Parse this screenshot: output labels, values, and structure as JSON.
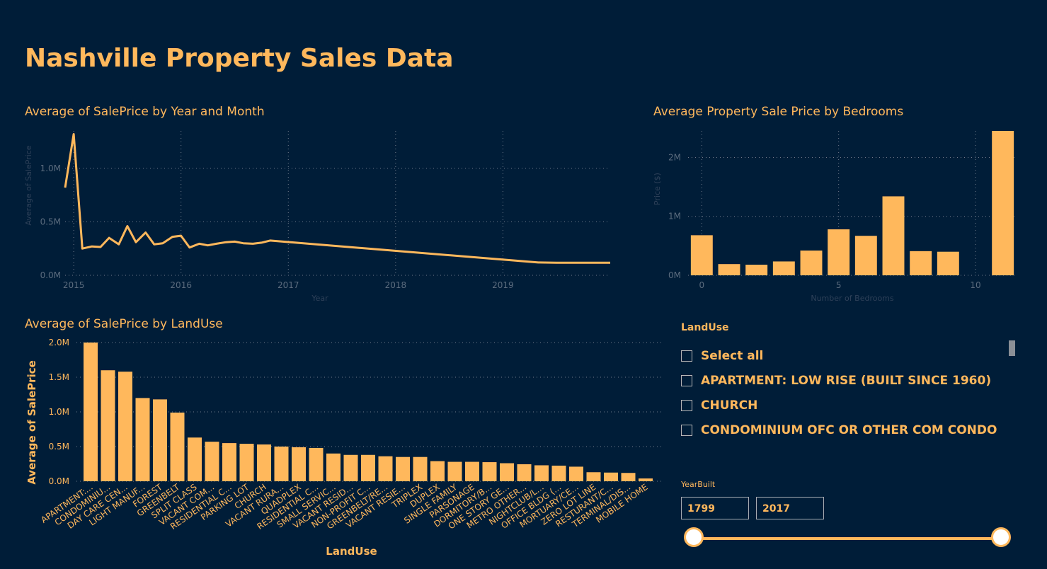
{
  "page": {
    "title": "Nashville Property Sales Data"
  },
  "charts": {
    "line": {
      "title": "Average of SalePrice by Year and Month"
    },
    "bedrooms": {
      "title": "Average Property Sale Price by Bedrooms"
    },
    "landuse": {
      "title": "Average of SalePrice by LandUse"
    }
  },
  "chart_data": [
    {
      "type": "line",
      "title": "Average of SalePrice by Year and Month",
      "xlabel": "Year",
      "ylabel": "Average of SalePrice",
      "xlim": [
        2014.92,
        2020.0
      ],
      "ylim": [
        0,
        1350000
      ],
      "x_ticks": [
        "2015",
        "2016",
        "2017",
        "2018",
        "2019"
      ],
      "y_ticks": [
        "0.0M",
        "0.5M",
        "1.0M"
      ],
      "color": "#FFB85C",
      "points": [
        [
          2014.92,
          820000
        ],
        [
          2015.0,
          1320000
        ],
        [
          2015.08,
          250000
        ],
        [
          2015.17,
          270000
        ],
        [
          2015.25,
          265000
        ],
        [
          2015.33,
          350000
        ],
        [
          2015.42,
          290000
        ],
        [
          2015.5,
          460000
        ],
        [
          2015.58,
          310000
        ],
        [
          2015.67,
          400000
        ],
        [
          2015.75,
          290000
        ],
        [
          2015.83,
          300000
        ],
        [
          2015.92,
          360000
        ],
        [
          2016.0,
          370000
        ],
        [
          2016.08,
          260000
        ],
        [
          2016.17,
          295000
        ],
        [
          2016.25,
          280000
        ],
        [
          2016.33,
          295000
        ],
        [
          2016.42,
          310000
        ],
        [
          2016.5,
          315000
        ],
        [
          2016.58,
          300000
        ],
        [
          2016.67,
          295000
        ],
        [
          2016.75,
          305000
        ],
        [
          2016.83,
          325000
        ],
        [
          2019.33,
          120000
        ],
        [
          2019.5,
          118000
        ],
        [
          2020.0,
          118000
        ]
      ]
    },
    {
      "type": "bar",
      "title": "Average Property Sale Price by Bedrooms",
      "xlabel": "Number of Bedrooms",
      "ylabel": "Price ($)",
      "xlim": [
        -0.5,
        11.5
      ],
      "ylim": [
        0,
        2450000
      ],
      "x_ticks": [
        0,
        5,
        10
      ],
      "y_ticks": [
        "0M",
        "1M",
        "2M"
      ],
      "color": "#FFB85C",
      "x": [
        0,
        1,
        2,
        3,
        4,
        5,
        6,
        7,
        8,
        9,
        11
      ],
      "values": [
        680000,
        190000,
        180000,
        235000,
        420000,
        780000,
        670000,
        1340000,
        410000,
        400000,
        2450000
      ]
    },
    {
      "type": "bar",
      "title": "Average of SalePrice by LandUse",
      "xlabel": "LandUse",
      "ylabel": "Average of SalePrice",
      "ylim": [
        0,
        2000000
      ],
      "y_ticks": [
        "0.0M",
        "0.5M",
        "1.0M",
        "1.5M",
        "2.0M"
      ],
      "color": "#FFB85C",
      "categories": [
        "APARTMENT:...",
        "CONDOMINIU...",
        "DAY CARE CEN...",
        "LIGHT MANUF...",
        "FOREST",
        "GREENBELT",
        "SPLIT CLASS",
        "VACANT COM...",
        "RESIDENTIAL C...",
        "PARKING LOT",
        "CHURCH",
        "VACANT RURA...",
        "QUADPLEX",
        "RESIDENTIAL C...",
        "SMALL SERVIC...",
        "VACANT RESID...",
        "NON-PROFIT C...",
        "GREENBELT/RE...",
        "VACANT RESIE...",
        "TRIPLEX",
        "DUPLEX",
        "SINGLE FAMILY",
        "PARSONAGE",
        "DORMITORY/B...",
        "ONE STORY GE...",
        "METRO OTHER...",
        "NIGHTCLUB/L...",
        "OFFICE BLDG (...",
        "MORTUARY/CE...",
        "ZERO LOT LINE",
        "RESTURANT/C...",
        "TERMINAL/DIS...",
        "MOBILE HOME"
      ],
      "values": [
        2000000,
        1600000,
        1580000,
        1200000,
        1180000,
        990000,
        630000,
        570000,
        550000,
        540000,
        530000,
        500000,
        490000,
        480000,
        400000,
        380000,
        380000,
        360000,
        350000,
        350000,
        290000,
        280000,
        280000,
        275000,
        260000,
        245000,
        230000,
        225000,
        210000,
        130000,
        125000,
        120000,
        40000
      ]
    }
  ],
  "slicer": {
    "title": "LandUse",
    "items": [
      {
        "label": "Select all"
      },
      {
        "label": "APARTMENT: LOW RISE (BUILT SINCE 1960)"
      },
      {
        "label": "CHURCH"
      },
      {
        "label": "CONDOMINIUM OFC OR OTHER COM CONDO"
      }
    ]
  },
  "yearbuilt": {
    "title": "YearBuilt",
    "min": "1799",
    "max": "2017"
  }
}
